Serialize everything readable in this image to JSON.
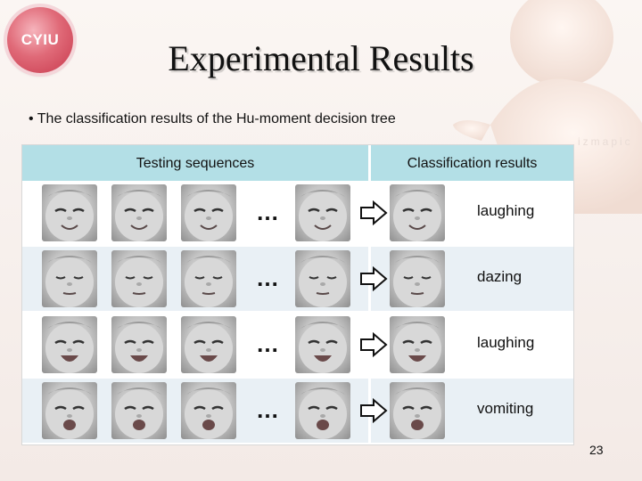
{
  "slide": {
    "title": "Experimental Results",
    "bullet": "The classification results of the Hu-moment decision tree",
    "page_number": "23"
  },
  "logo": {
    "text": "CYIU"
  },
  "table": {
    "headers": [
      "Testing sequences",
      "Classification results"
    ],
    "rows": [
      {
        "ellipsis": "…",
        "result": "laughing",
        "expression": "smile"
      },
      {
        "ellipsis": "…",
        "result": "dazing",
        "expression": "sleep"
      },
      {
        "ellipsis": "…",
        "result": "laughing",
        "expression": "open-smile"
      },
      {
        "ellipsis": "…",
        "result": "vomiting",
        "expression": "open-mouth"
      }
    ]
  },
  "colors": {
    "header": "#b3dfe6",
    "row_alt": "#e9f0f5",
    "logo": "#d94a5c"
  }
}
